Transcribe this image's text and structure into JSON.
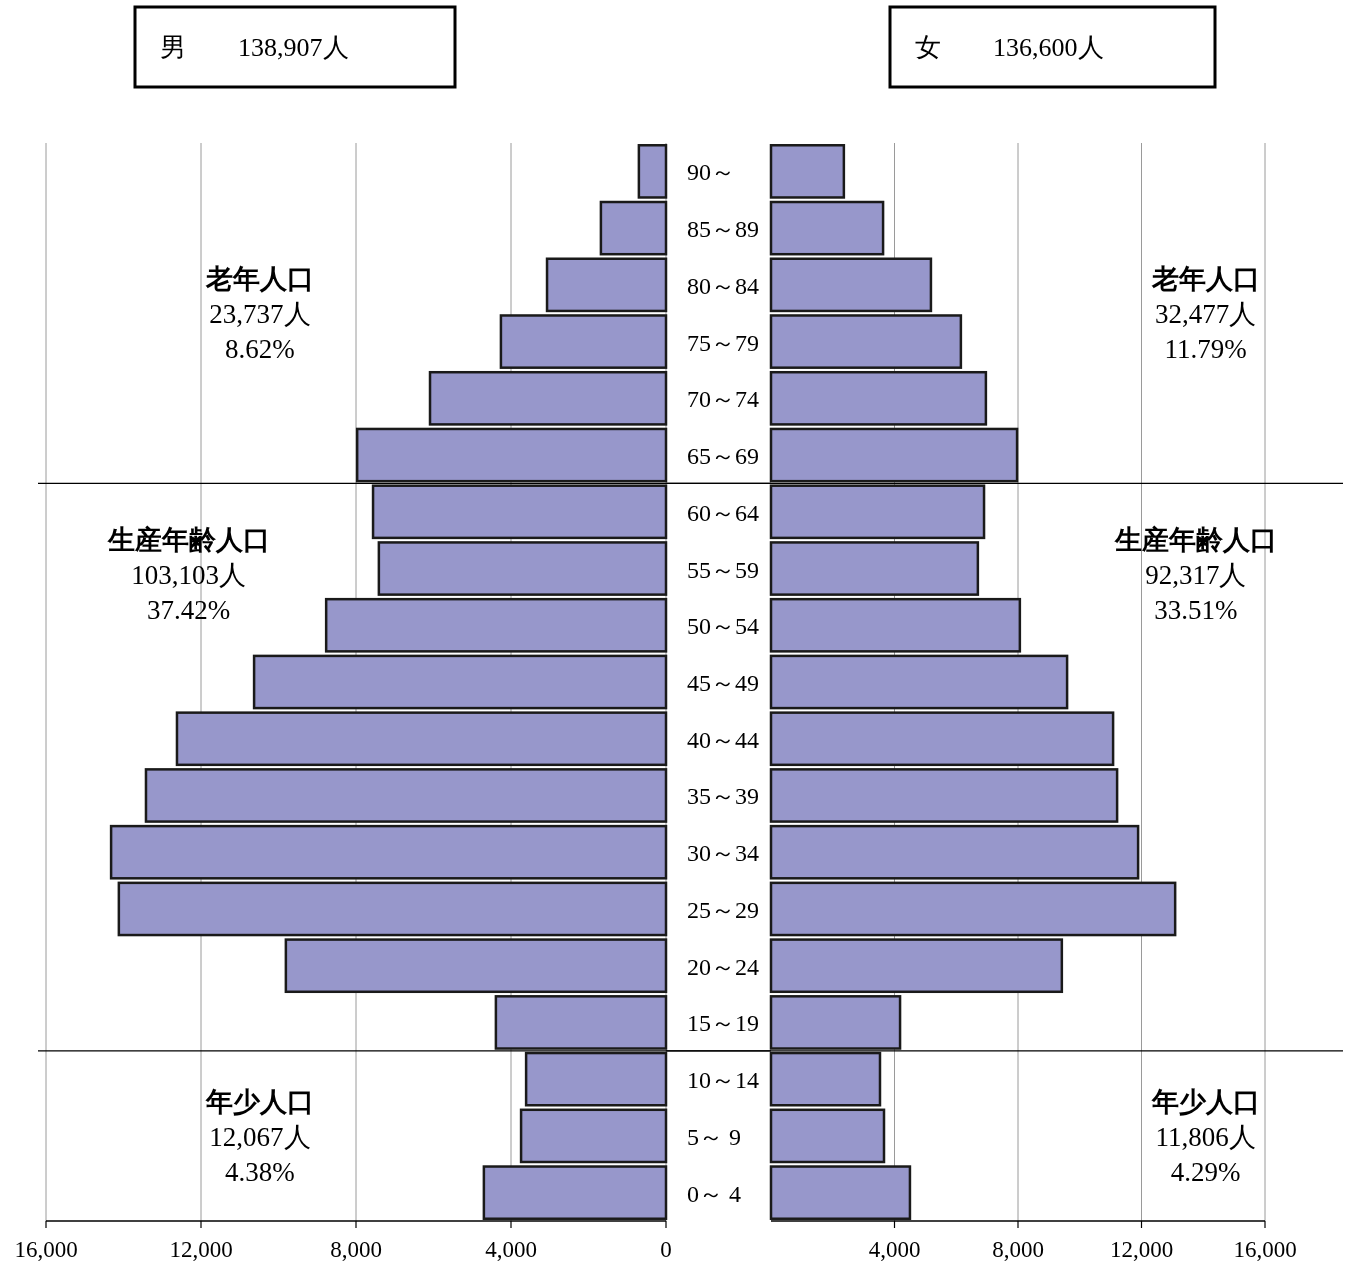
{
  "chart_data": [
    {
      "type": "bar",
      "orientation": "horizontal",
      "title": "男　　138,907人",
      "categories": [
        "90～",
        "85～89",
        "80～84",
        "75～79",
        "70～74",
        "65～69",
        "60～64",
        "55～59",
        "50～54",
        "45～49",
        "40～44",
        "35～39",
        "30～34",
        "25～29",
        "20～24",
        "15～19",
        "10～14",
        "5～ 9",
        "0～ 4"
      ],
      "values": [
        700,
        1680,
        3070,
        4260,
        6090,
        7970,
        7560,
        7410,
        8770,
        10630,
        12620,
        13420,
        14320,
        14120,
        9810,
        4390,
        3610,
        3740,
        4700
      ],
      "color": "#9797cb",
      "xlim": [
        16000,
        0
      ],
      "xticks": [
        {
          "value": 16000,
          "label": "16,000"
        },
        {
          "value": 12000,
          "label": "12,000"
        },
        {
          "value": 8000,
          "label": "8,000"
        },
        {
          "value": 4000,
          "label": "4,000"
        },
        0
      ],
      "grid": "x",
      "annotations": [
        "老年人口\n23,737人\n8.62%",
        "生産年齢人口\n103,103人\n37.42%",
        "年少人口\n12,067人\n4.38%"
      ]
    },
    {
      "type": "bar",
      "orientation": "horizontal",
      "title": "女　　136,600人",
      "categories": [
        null,
        null,
        null,
        null,
        null,
        null,
        null,
        null,
        null,
        null,
        null,
        null,
        null,
        null,
        null,
        null,
        null,
        null,
        null
      ],
      "values": [
        2360,
        3630,
        5180,
        6150,
        6960,
        7970,
        6900,
        6700,
        8060,
        9590,
        11080,
        11210,
        11890,
        13090,
        9420,
        4180,
        3530,
        3660,
        4500
      ],
      "color": "#9797cb",
      "xlim": [
        0,
        16000
      ],
      "xticks": [
        {
          "value": 4000,
          "label": "4,000"
        },
        {
          "value": 8000,
          "label": "8,000"
        },
        {
          "value": 12000,
          "label": "12,000"
        },
        {
          "value": 16000,
          "label": "16,000"
        }
      ],
      "grid": "x",
      "annotations": [
        "老年人口\n32,477人\n11.79%",
        "生産年齢人口\n92,317人\n33.51%",
        "年少人口\n11,806人\n4.29%"
      ]
    }
  ]
}
